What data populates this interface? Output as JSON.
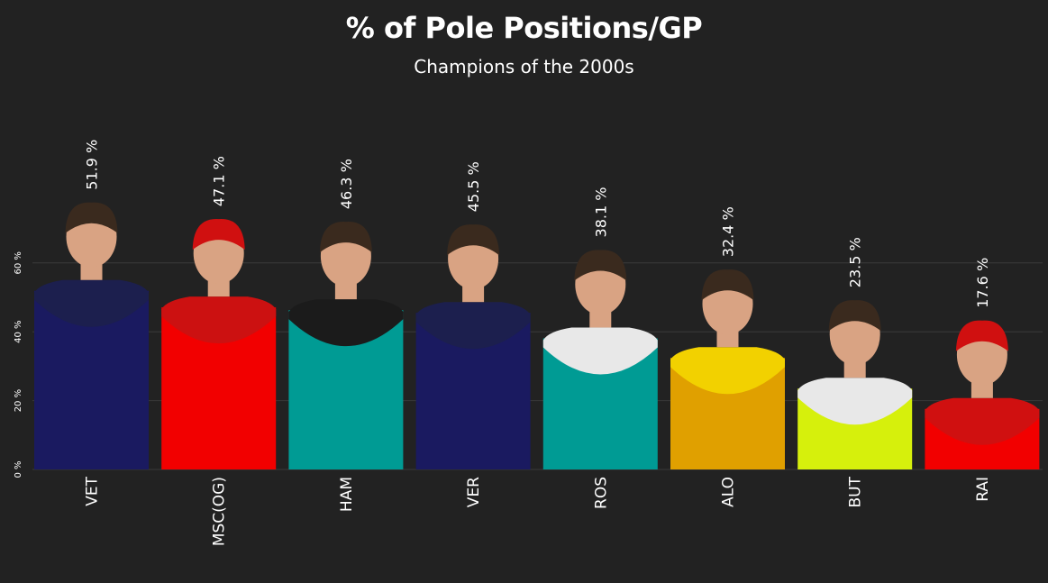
{
  "chart_data": {
    "type": "bar",
    "title": "% of Pole Positions/GP",
    "subtitle": "Champions of the 2000s",
    "xlabel": "",
    "ylabel": "",
    "ylim": [
      0,
      70
    ],
    "yticks": [
      0,
      20,
      40,
      60
    ],
    "ytick_labels": [
      "0 %",
      "20 %",
      "40 %",
      "60 %"
    ],
    "grid": true,
    "categories": [
      "VET",
      "MSC(OG)",
      "HAM",
      "VER",
      "ROS",
      "ALO",
      "BUT",
      "RAI"
    ],
    "values": [
      51.9,
      47.1,
      46.3,
      45.5,
      38.1,
      32.4,
      23.5,
      17.6
    ],
    "value_labels": [
      "51.9 %",
      "47.1 %",
      "46.3 %",
      "45.5 %",
      "38.1 %",
      "32.4 %",
      "23.5 %",
      "17.6 %"
    ],
    "colors": [
      "#1a1a60",
      "#f20000",
      "#009b94",
      "#1a1a60",
      "#009b94",
      "#e0a000",
      "#d6f00c",
      "#f20000"
    ],
    "suit_colors": [
      "#1c1f4e",
      "#cc1111",
      "#1b1b1b",
      "#1c1f4e",
      "#e8e8e8",
      "#f2d100",
      "#e8e8e8",
      "#d01010"
    ],
    "photos": [
      "driver-photo-vet",
      "driver-photo-msc",
      "driver-photo-ham",
      "driver-photo-ver",
      "driver-photo-ros",
      "driver-photo-alo",
      "driver-photo-but",
      "driver-photo-rai"
    ]
  },
  "colors": {
    "background": "#222222",
    "grid": "#3a3a3a",
    "text": "#ffffff",
    "skin": "#d9a383",
    "hair": "#3a2a1e"
  }
}
